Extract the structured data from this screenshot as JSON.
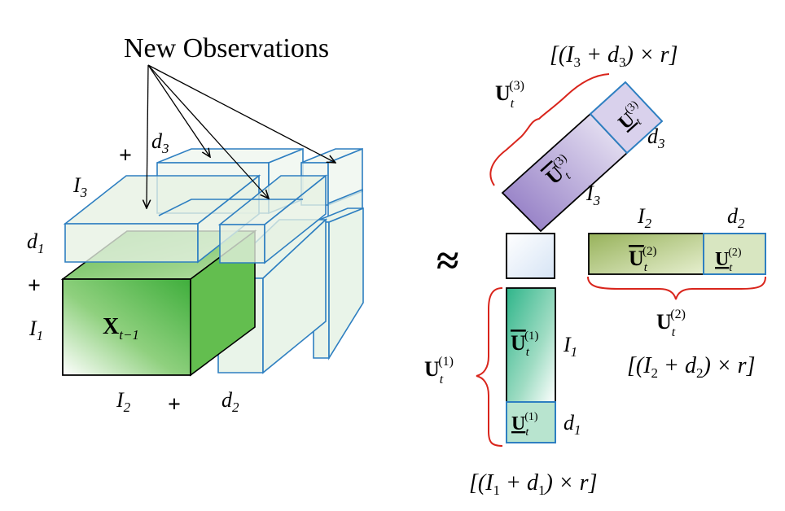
{
  "title": "New Observations",
  "tensor": {
    "main": "X",
    "main_sub": "t−1",
    "dim_I1": "I",
    "dim_I1_sub": "1",
    "dim_I2": "I",
    "dim_I2_sub": "2",
    "dim_I3": "I",
    "dim_I3_sub": "3",
    "dim_d1": "d",
    "dim_d1_sub": "1",
    "dim_d2": "d",
    "dim_d2_sub": "2",
    "dim_d3": "d",
    "dim_d3_sub": "3",
    "plus": "+"
  },
  "approx": "≈",
  "factors": {
    "U_letter": "U",
    "t": "t",
    "sup1": "(1)",
    "sup2": "(2)",
    "sup3": "(3)",
    "size1_pre": "[(I",
    "size1_sub_a": "1",
    "size1_mid": " + d",
    "size1_sub_b": "1",
    "size1_post": ") × r]",
    "size2_pre": "[(I",
    "size2_sub_a": "2",
    "size2_mid": " + d",
    "size2_sub_b": "2",
    "size2_post": ") × r]",
    "size3_pre": "[(I",
    "size3_sub_a": "3",
    "size3_mid": " + d",
    "size3_sub_b": "3",
    "size3_post": ") × r]"
  },
  "colors": {
    "green": "#6cc255",
    "green_light": "#dff0dc",
    "pale_green": "#e8f4e8",
    "blue_edge": "#2e7fc1",
    "purple": "#a795c9",
    "red": "#d9251c"
  }
}
